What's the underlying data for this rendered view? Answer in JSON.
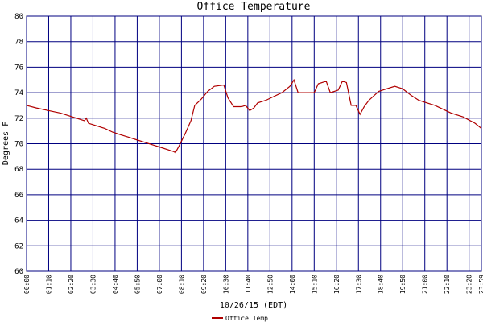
{
  "chart_data": {
    "type": "line",
    "title": "Office Temperature",
    "x_label": "10/26/15 (EDT)",
    "y_label": "Degrees F",
    "x": [
      0,
      31,
      69,
      107,
      145,
      171,
      183,
      189,
      196,
      222,
      247,
      273,
      298,
      324,
      349,
      375,
      400,
      426,
      451,
      464,
      471,
      482,
      502,
      520,
      532,
      553,
      573,
      594,
      624,
      637,
      655,
      680,
      693,
      706,
      719,
      731,
      757,
      782,
      808,
      833,
      846,
      859,
      910,
      923,
      948,
      961,
      986,
      999,
      1012,
      1027,
      1042,
      1055,
      1068,
      1083,
      1114,
      1139,
      1165,
      1190,
      1216,
      1241,
      1292,
      1343,
      1381,
      1419,
      1439
    ],
    "series": [
      {
        "name": "Office Temp",
        "color": "#b00000",
        "values": [
          73.0,
          72.8,
          72.6,
          72.4,
          72.1,
          71.9,
          71.8,
          72.0,
          71.6,
          71.4,
          71.2,
          70.9,
          70.7,
          70.5,
          70.3,
          70.1,
          69.9,
          69.7,
          69.5,
          69.4,
          69.3,
          69.8,
          70.8,
          71.8,
          73.0,
          73.5,
          74.1,
          74.5,
          74.6,
          73.6,
          72.9,
          72.9,
          73.0,
          72.6,
          72.8,
          73.2,
          73.4,
          73.7,
          74.0,
          74.5,
          75.0,
          74.0,
          74.0,
          74.7,
          74.9,
          74.0,
          74.2,
          74.9,
          74.8,
          73.0,
          73.0,
          72.3,
          72.9,
          73.4,
          74.1,
          74.3,
          74.5,
          74.3,
          73.8,
          73.4,
          73.0,
          72.4,
          72.1,
          71.6,
          71.2
        ]
      }
    ],
    "xlim": [
      0,
      1439
    ],
    "xticks": [
      {
        "value": 0,
        "label": "00:00"
      },
      {
        "value": 70,
        "label": "01:10"
      },
      {
        "value": 140,
        "label": "02:20"
      },
      {
        "value": 210,
        "label": "03:30"
      },
      {
        "value": 280,
        "label": "04:40"
      },
      {
        "value": 350,
        "label": "05:50"
      },
      {
        "value": 420,
        "label": "07:00"
      },
      {
        "value": 490,
        "label": "08:10"
      },
      {
        "value": 560,
        "label": "09:20"
      },
      {
        "value": 630,
        "label": "10:30"
      },
      {
        "value": 700,
        "label": "11:40"
      },
      {
        "value": 770,
        "label": "12:50"
      },
      {
        "value": 840,
        "label": "14:00"
      },
      {
        "value": 910,
        "label": "15:10"
      },
      {
        "value": 980,
        "label": "16:20"
      },
      {
        "value": 1050,
        "label": "17:30"
      },
      {
        "value": 1120,
        "label": "18:40"
      },
      {
        "value": 1190,
        "label": "19:50"
      },
      {
        "value": 1260,
        "label": "21:00"
      },
      {
        "value": 1330,
        "label": "22:10"
      },
      {
        "value": 1400,
        "label": "23:20"
      },
      {
        "value": 1439,
        "label": "23:59"
      }
    ],
    "ylim": [
      60,
      80
    ],
    "yticks": [
      60,
      62,
      64,
      66,
      68,
      70,
      72,
      74,
      76,
      78,
      80
    ],
    "grid": true
  }
}
